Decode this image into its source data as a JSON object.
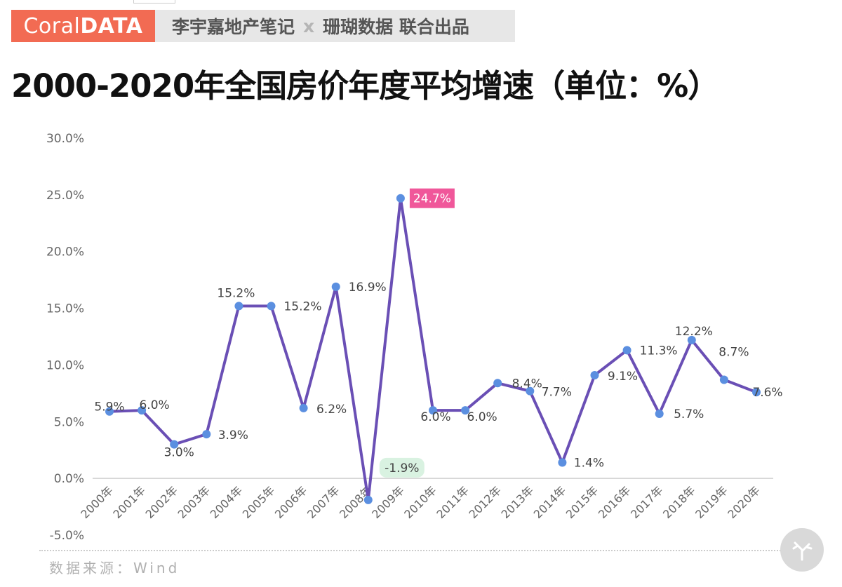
{
  "header": {
    "logo_light": "Coral",
    "logo_bold": "DATA",
    "banner_left": "李宇嘉地产笔记",
    "banner_x": "x",
    "banner_right": "珊瑚数据 联合出品"
  },
  "footer": {
    "source": "数据来源：Wind"
  },
  "colors": {
    "line": "#6a4fb5",
    "point": "#5b8fe0",
    "max_label_bg": "#f0579a",
    "min_label_bg": "#d9f2e1",
    "logo_bg": "#f26b53"
  },
  "chart_data": {
    "type": "line",
    "title": "2000-2020年全国房价年度平均增速（单位：%）",
    "categories": [
      "2000年",
      "2001年",
      "2002年",
      "2003年",
      "2004年",
      "2005年",
      "2006年",
      "2007年",
      "2008年",
      "2009年",
      "2010年",
      "2011年",
      "2012年",
      "2013年",
      "2014年",
      "2015年",
      "2016年",
      "2017年",
      "2018年",
      "2019年",
      "2020年"
    ],
    "series": [
      {
        "values": [
          5.9,
          6.0,
          3.0,
          3.9,
          15.2,
          15.2,
          6.2,
          16.9,
          -1.9,
          24.7,
          6.0,
          6.0,
          8.4,
          7.7,
          1.4,
          9.1,
          11.3,
          5.7,
          12.2,
          8.7,
          7.6
        ]
      }
    ],
    "data_labels": [
      "5.9%",
      "6.0%",
      "3.0%",
      "3.9%",
      "15.2%",
      "15.2%",
      "6.2%",
      "16.9%",
      "-1.9%",
      "24.7%",
      "6.0%",
      "6.0%",
      "8.4%",
      "7.7%",
      "1.4%",
      "9.1%",
      "11.3%",
      "5.7%",
      "12.2%",
      "8.7%",
      "7.6%"
    ],
    "y_ticks": [
      "-5.0%",
      "0.0%",
      "5.0%",
      "10.0%",
      "15.0%",
      "20.0%",
      "25.0%",
      "30.0%"
    ],
    "ylim": [
      -5,
      30
    ],
    "grid": false,
    "highlight": {
      "max_index": 9,
      "min_index": 8
    }
  }
}
